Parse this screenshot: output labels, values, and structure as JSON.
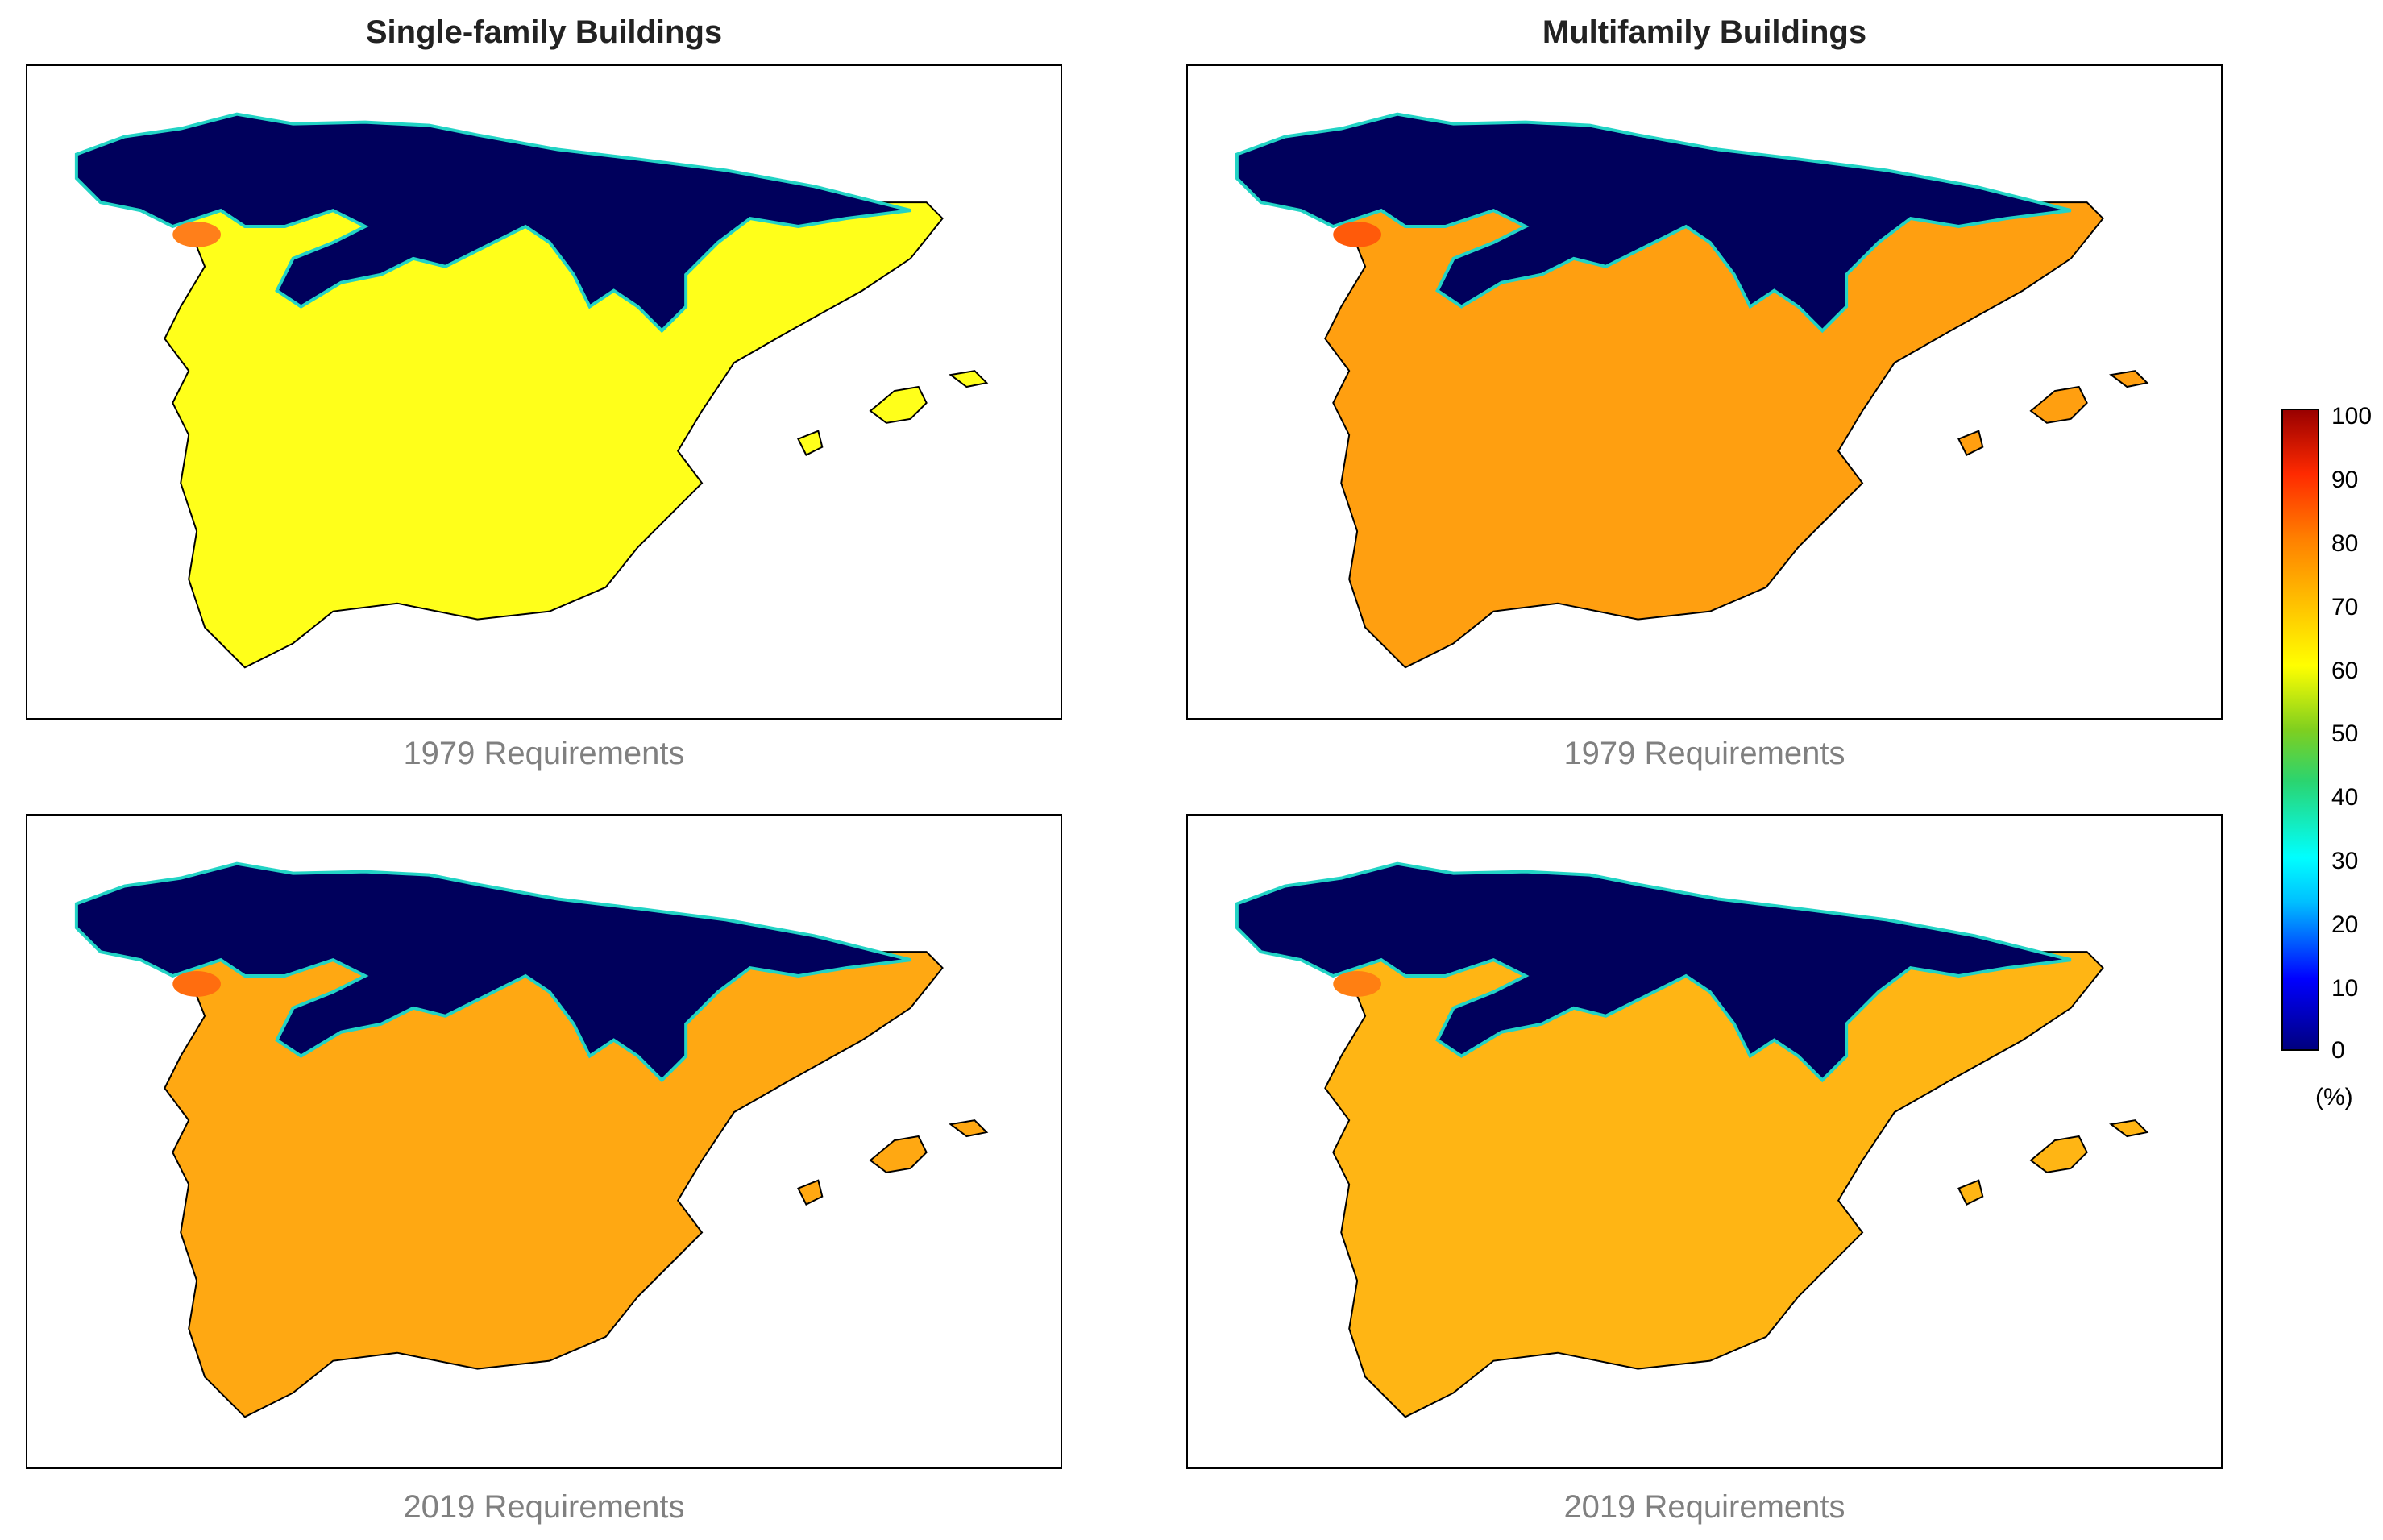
{
  "columns": [
    {
      "title": "Single-family Buildings"
    },
    {
      "title": "Multifamily Buildings"
    }
  ],
  "panels": [
    {
      "caption": "1979 Requirements",
      "fill_color": "#ffff1a",
      "north_color": "#00005c",
      "accent_color": "#ff7f1a"
    },
    {
      "caption": "1979 Requirements",
      "fill_color": "#ff9f10",
      "north_color": "#00005c",
      "accent_color": "#ff5a0a"
    },
    {
      "caption": "2019 Requirements",
      "fill_color": "#ffa812",
      "north_color": "#00005c",
      "accent_color": "#ff6d0f"
    },
    {
      "caption": "2019 Requirements",
      "fill_color": "#ffb514",
      "north_color": "#00005c",
      "accent_color": "#ff7f12"
    }
  ],
  "colorbar": {
    "ticks": [
      "100",
      "90",
      "80",
      "70",
      "60",
      "50",
      "40",
      "30",
      "20",
      "10",
      "0"
    ],
    "unit": "(%)",
    "min": 0,
    "max": 100,
    "colormap": "jet"
  }
}
